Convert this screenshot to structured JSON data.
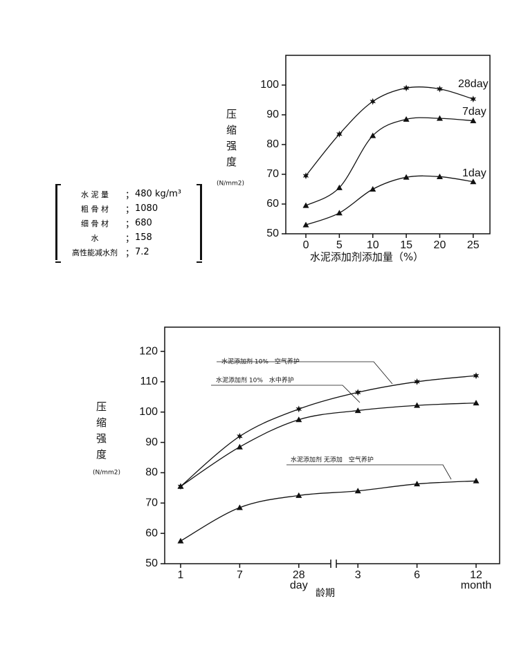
{
  "chart_data": [
    {
      "type": "line",
      "y_label": "压缩强度",
      "y_unit": "(N/mm2)",
      "x_label": "水泥添加剂添加量（%）",
      "x": [
        0,
        5,
        10,
        15,
        20,
        25
      ],
      "xlim": [
        -3,
        27.5
      ],
      "xticks": [
        0,
        5,
        10,
        15,
        20,
        25
      ],
      "ylim": [
        50,
        110
      ],
      "yticks": [
        50,
        60,
        70,
        80,
        90,
        100
      ],
      "grid": false,
      "series": [
        {
          "name": "28day",
          "color": "#111111",
          "marker": "star",
          "values": [
            69.5,
            83.5,
            94.5,
            99,
            98.7,
            95.3
          ]
        },
        {
          "name": "7day",
          "color": "#111111",
          "marker": "triangle",
          "values": [
            59.5,
            65.5,
            83,
            88.5,
            88.8,
            88
          ]
        },
        {
          "name": "1day",
          "color": "#111111",
          "marker": "triangle",
          "values": [
            53,
            57,
            65,
            69,
            69.2,
            67.5
          ]
        }
      ]
    },
    {
      "type": "line",
      "y_label": "压缩强度",
      "y_unit": "(N/mm2)",
      "x_label": "龄期",
      "categories": [
        "1",
        "7",
        "28",
        "3",
        "6",
        "12"
      ],
      "x_units": [
        "day",
        "month"
      ],
      "ylim": [
        50,
        128
      ],
      "yticks": [
        50,
        60,
        70,
        80,
        90,
        100,
        110,
        120
      ],
      "grid": false,
      "series": [
        {
          "name": "水泥添加剂 10%　空气养护",
          "color": "#111111",
          "marker": "star",
          "values": [
            75.5,
            92,
            101,
            106.5,
            110,
            112
          ]
        },
        {
          "name": "水泥添加剂 10%　水中养护",
          "color": "#111111",
          "marker": "triangle",
          "values": [
            75.5,
            88.5,
            97.5,
            100.5,
            102.2,
            103
          ]
        },
        {
          "name": "水泥添加剂 无添加　空气养护",
          "color": "#111111",
          "marker": "triangle",
          "values": [
            57.5,
            68.5,
            72.5,
            74,
            76.3,
            77.3
          ]
        }
      ]
    }
  ],
  "mix_table": {
    "separator": "；",
    "rows": [
      [
        "水 泥 量",
        "480 kg/m³"
      ],
      [
        "粗 骨 材",
        "1080"
      ],
      [
        "细 骨 材",
        "680"
      ],
      [
        "水",
        "158"
      ],
      [
        "高性能减水剂",
        "7.2"
      ]
    ]
  }
}
